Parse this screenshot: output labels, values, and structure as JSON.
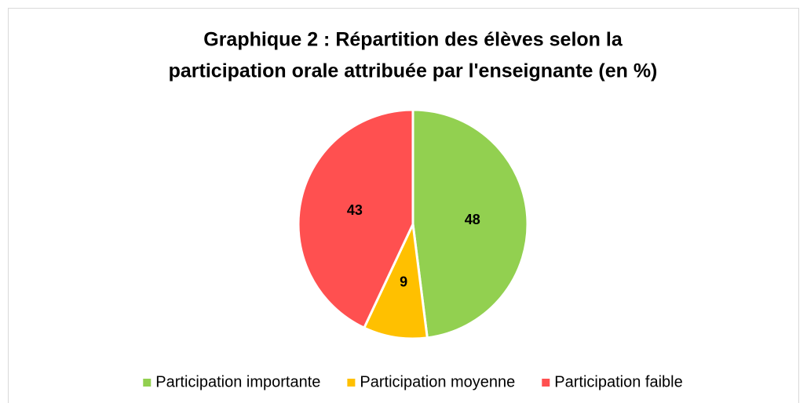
{
  "chart_data": {
    "type": "pie",
    "title": [
      "Graphique 2 : Répartition des élèves selon la",
      "participation orale attribuée par l'enseignante (en %)"
    ],
    "categories": [
      "Participation importante",
      "Participation moyenne",
      "Participation faible"
    ],
    "values": [
      48,
      9,
      43
    ],
    "colors": [
      "#92d050",
      "#ffc000",
      "#ff5050"
    ],
    "legend": "bottom"
  }
}
